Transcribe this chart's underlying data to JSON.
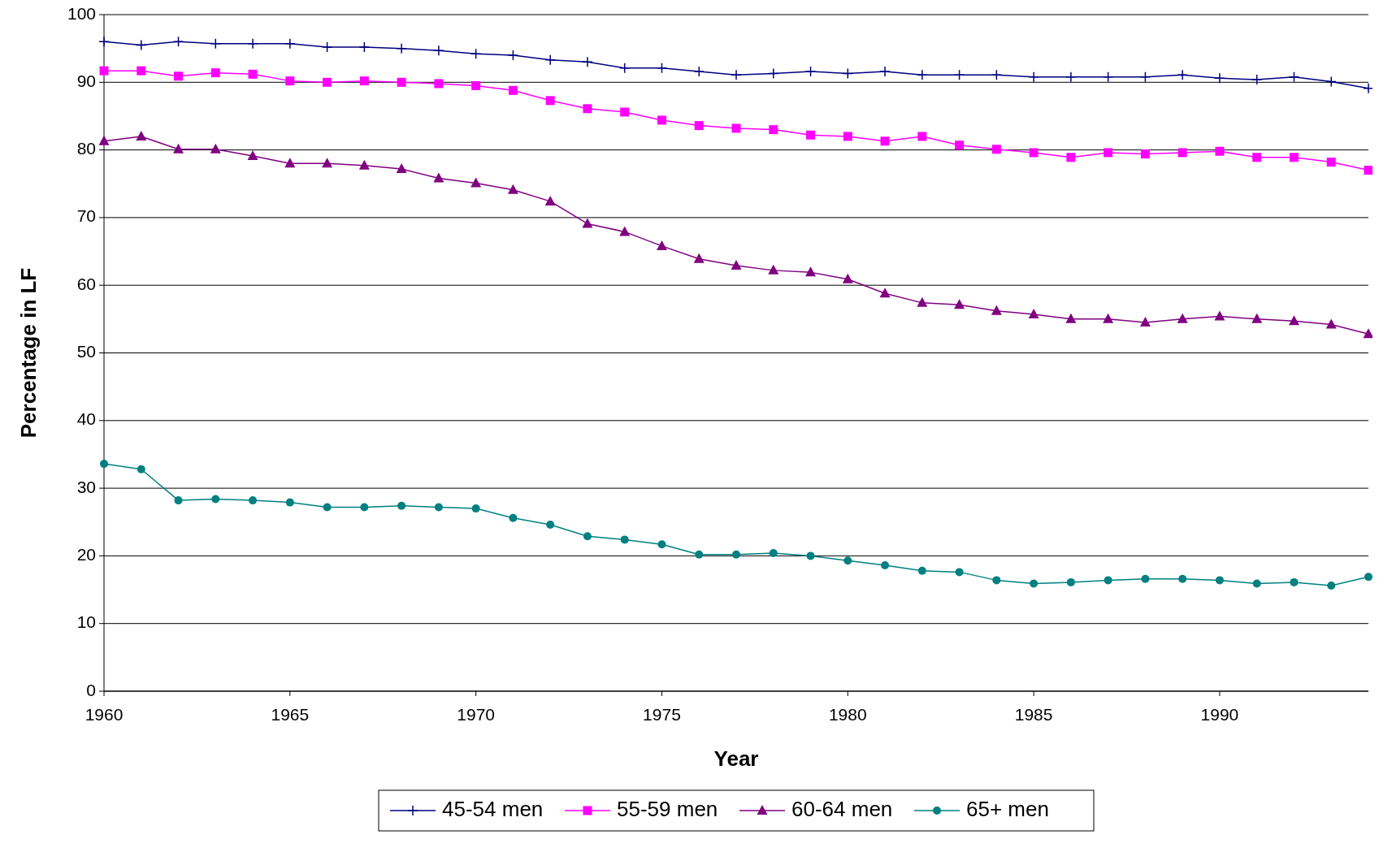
{
  "chart_data": {
    "type": "line",
    "xlabel": "Year",
    "ylabel": "Percentage in LF",
    "x": [
      1960,
      1961,
      1962,
      1963,
      1964,
      1965,
      1966,
      1967,
      1968,
      1969,
      1970,
      1971,
      1972,
      1973,
      1974,
      1975,
      1976,
      1977,
      1978,
      1979,
      1980,
      1981,
      1982,
      1983,
      1984,
      1985,
      1986,
      1987,
      1988,
      1989,
      1990,
      1991,
      1992,
      1993,
      1994
    ],
    "xlim": [
      1960,
      1994
    ],
    "xticks": [
      1960,
      1965,
      1970,
      1975,
      1980,
      1985,
      1990
    ],
    "ylim": [
      0,
      100
    ],
    "yticks": [
      0,
      10,
      20,
      30,
      40,
      50,
      60,
      70,
      80,
      90,
      100
    ],
    "grid": "y",
    "legend": "bottom",
    "series": [
      {
        "name": "45-54 men",
        "color": "#000080",
        "marker": "cross",
        "values": [
          96,
          95.5,
          96,
          95.7,
          95.7,
          95.7,
          95.2,
          95.2,
          95,
          94.7,
          94.2,
          94,
          93.3,
          93,
          92.1,
          92.1,
          91.6,
          91.1,
          91.3,
          91.6,
          91.3,
          91.6,
          91.1,
          91.1,
          91.1,
          90.8,
          90.8,
          90.8,
          90.8,
          91.1,
          90.6,
          90.4,
          90.8,
          90.1,
          89.1
        ]
      },
      {
        "name": "55-59 men",
        "color": "#ff00ff",
        "marker": "square",
        "values": [
          91.7,
          91.7,
          90.9,
          91.4,
          91.2,
          90.2,
          90,
          90.2,
          90,
          89.8,
          89.5,
          88.8,
          87.3,
          86.1,
          85.6,
          84.4,
          83.6,
          83.2,
          83,
          82.2,
          82,
          81.3,
          82,
          80.7,
          80.1,
          79.6,
          78.9,
          79.6,
          79.4,
          79.6,
          79.8,
          78.9,
          78.9,
          78.2,
          77
        ]
      },
      {
        "name": "60-64 men",
        "color": "#800080",
        "marker": "triangle",
        "values": [
          81.3,
          82,
          80.1,
          80.1,
          79.1,
          78,
          78,
          77.7,
          77.2,
          75.8,
          75.1,
          74.1,
          72.4,
          69.1,
          67.9,
          65.8,
          63.9,
          62.9,
          62.2,
          61.9,
          60.9,
          58.8,
          57.4,
          57.1,
          56.2,
          55.7,
          55,
          55,
          54.5,
          55,
          55.4,
          55,
          54.7,
          54.2,
          52.8
        ]
      },
      {
        "name": "65+ men",
        "color": "#008080",
        "marker": "circle",
        "values": [
          33.6,
          32.8,
          28.2,
          28.4,
          28.2,
          27.9,
          27.2,
          27.2,
          27.4,
          27.2,
          27,
          25.6,
          24.6,
          22.9,
          22.4,
          21.7,
          20.2,
          20.2,
          20.4,
          20,
          19.3,
          18.6,
          17.8,
          17.6,
          16.4,
          15.9,
          16.1,
          16.4,
          16.6,
          16.6,
          16.4,
          15.9,
          16.1,
          15.6,
          16.9
        ]
      }
    ]
  }
}
